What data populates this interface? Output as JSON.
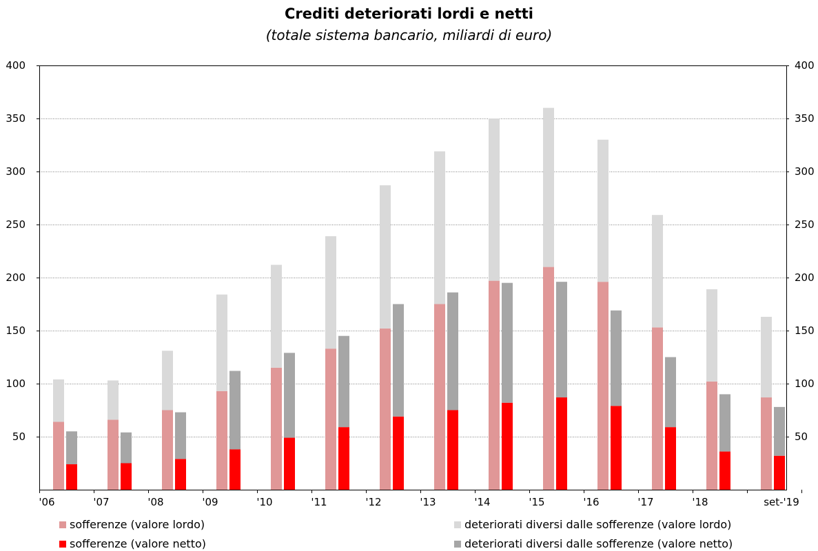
{
  "chart_data": {
    "type": "bar",
    "title": "Crediti deteriorati lordi e netti",
    "subtitle": "(totale sistema bancario, miliardi di euro)",
    "ylim": [
      0,
      400
    ],
    "yticks_left": [
      "50",
      "100",
      "150",
      "200",
      "250",
      "300",
      "350",
      "400"
    ],
    "yticks_right": [
      "50",
      "100",
      "150",
      "200",
      "250",
      "300",
      "350",
      "400"
    ],
    "categories": [
      "'06",
      "'07",
      "'08",
      "'09",
      "'10",
      "'11",
      "'12",
      "'13",
      "'14",
      "'15",
      "'16",
      "'17",
      "'18",
      "set-'19"
    ],
    "grid": true,
    "legend_position": "bottom",
    "colors": {
      "sofferenze_lordo": "#e09797",
      "sofferenze_netto": "#ff0000",
      "altri_lordo": "#d9d9d9",
      "altri_netto": "#a6a6a6"
    },
    "series": [
      {
        "name": "sofferenze (valore lordo)",
        "stack": "lordo",
        "values": [
          64,
          66,
          75,
          93,
          115,
          133,
          152,
          175,
          197,
          210,
          196,
          153,
          102,
          87
        ]
      },
      {
        "name": "deteriorati diversi dalle sofferenze (valore lordo)",
        "stack": "lordo",
        "values": [
          40,
          37,
          56,
          91,
          97,
          106,
          135,
          144,
          153,
          150,
          134,
          106,
          87,
          76
        ]
      },
      {
        "name": "sofferenze (valore netto)",
        "stack": "netto",
        "values": [
          24,
          25,
          29,
          38,
          49,
          59,
          69,
          75,
          82,
          87,
          79,
          59,
          36,
          32
        ]
      },
      {
        "name": "deteriorati diversi dalle sofferenze (valore netto)",
        "stack": "netto",
        "values": [
          31,
          29,
          44,
          74,
          80,
          86,
          106,
          111,
          113,
          109,
          90,
          66,
          54,
          46
        ]
      }
    ]
  }
}
